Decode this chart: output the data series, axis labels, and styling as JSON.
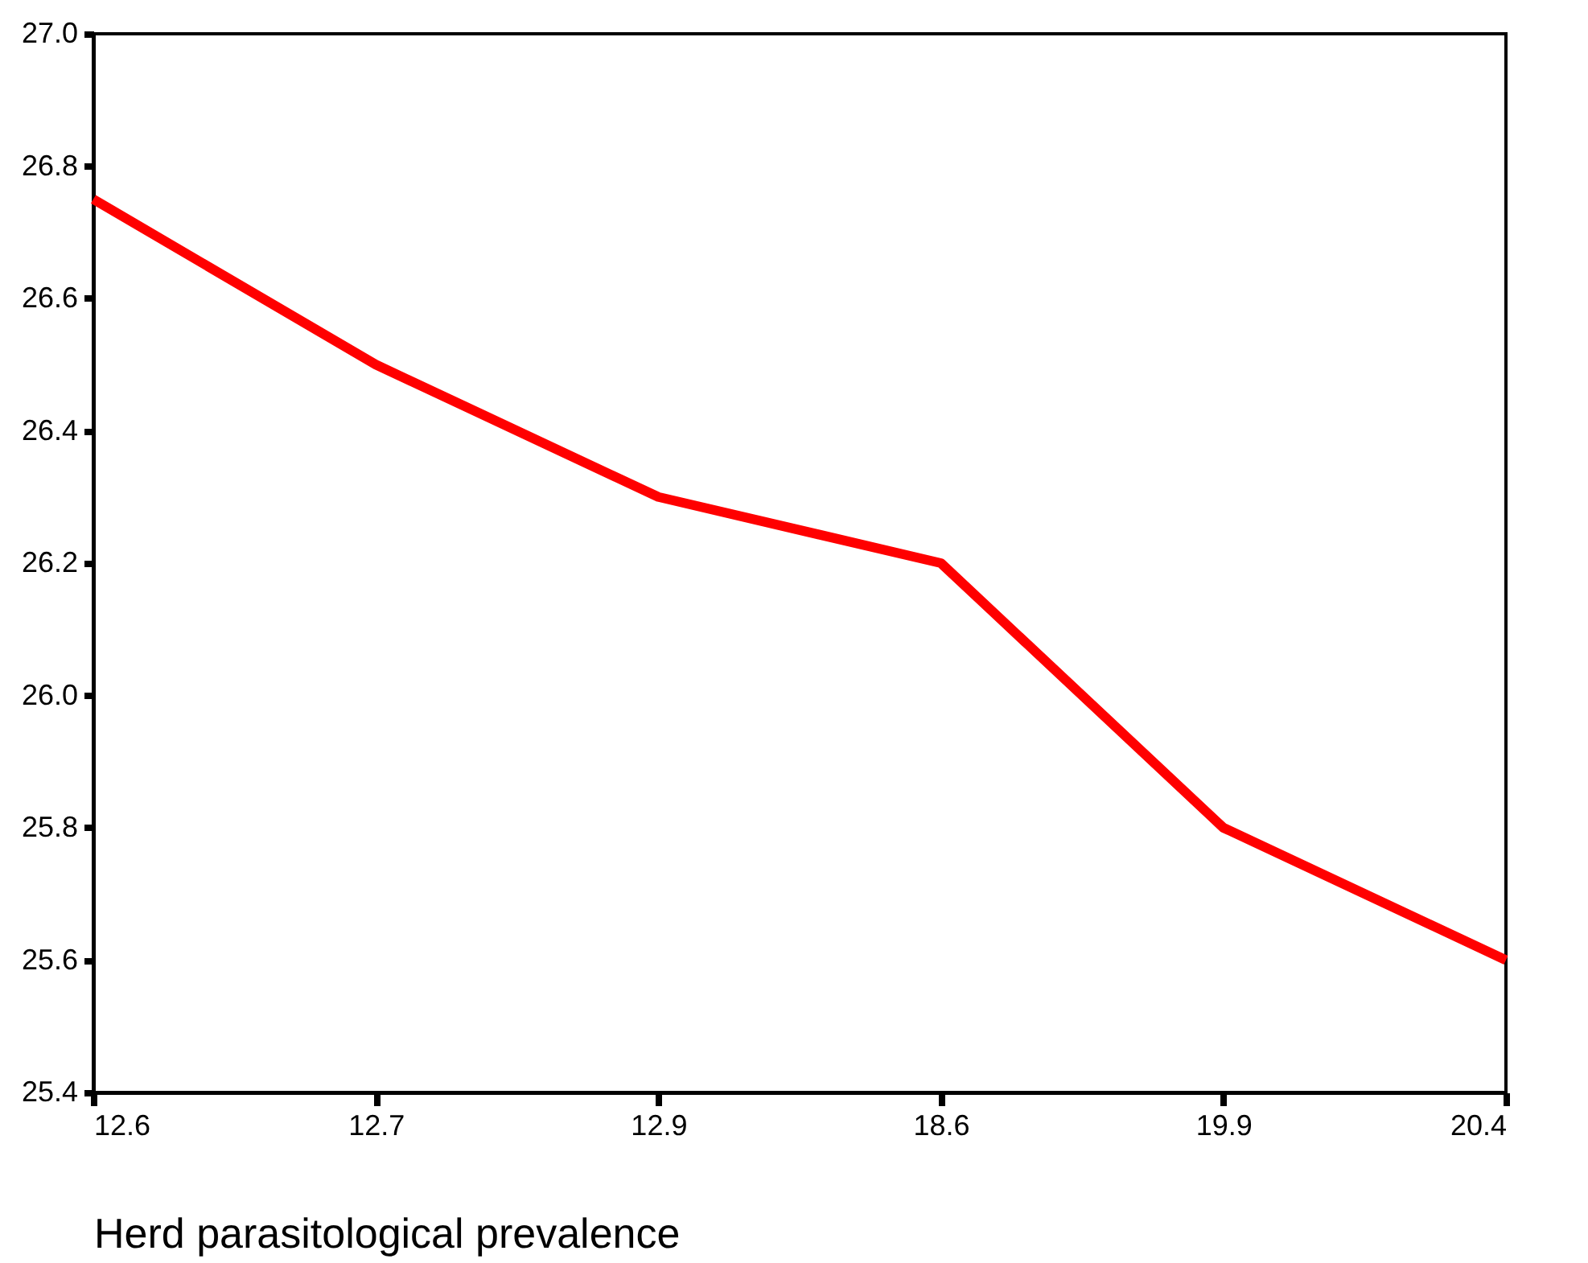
{
  "chart_data": {
    "type": "line",
    "xlabel": "Herd parasitological prevalence",
    "categories": [
      "12.6",
      "12.7",
      "12.9",
      "18.6",
      "19.9",
      "20.4"
    ],
    "series": [
      {
        "color": "#ff0000",
        "values": [
          26.75,
          26.5,
          26.3,
          26.2,
          25.8,
          25.6
        ]
      }
    ],
    "ylim": [
      25.4,
      27.0
    ],
    "yticks": [
      25.4,
      25.6,
      25.8,
      {
        "value": 26.0,
        "label": "26.0"
      },
      26.2,
      26.4,
      26.6,
      26.8,
      {
        "value": 27.0,
        "label": "27.0"
      }
    ],
    "grid": false
  }
}
